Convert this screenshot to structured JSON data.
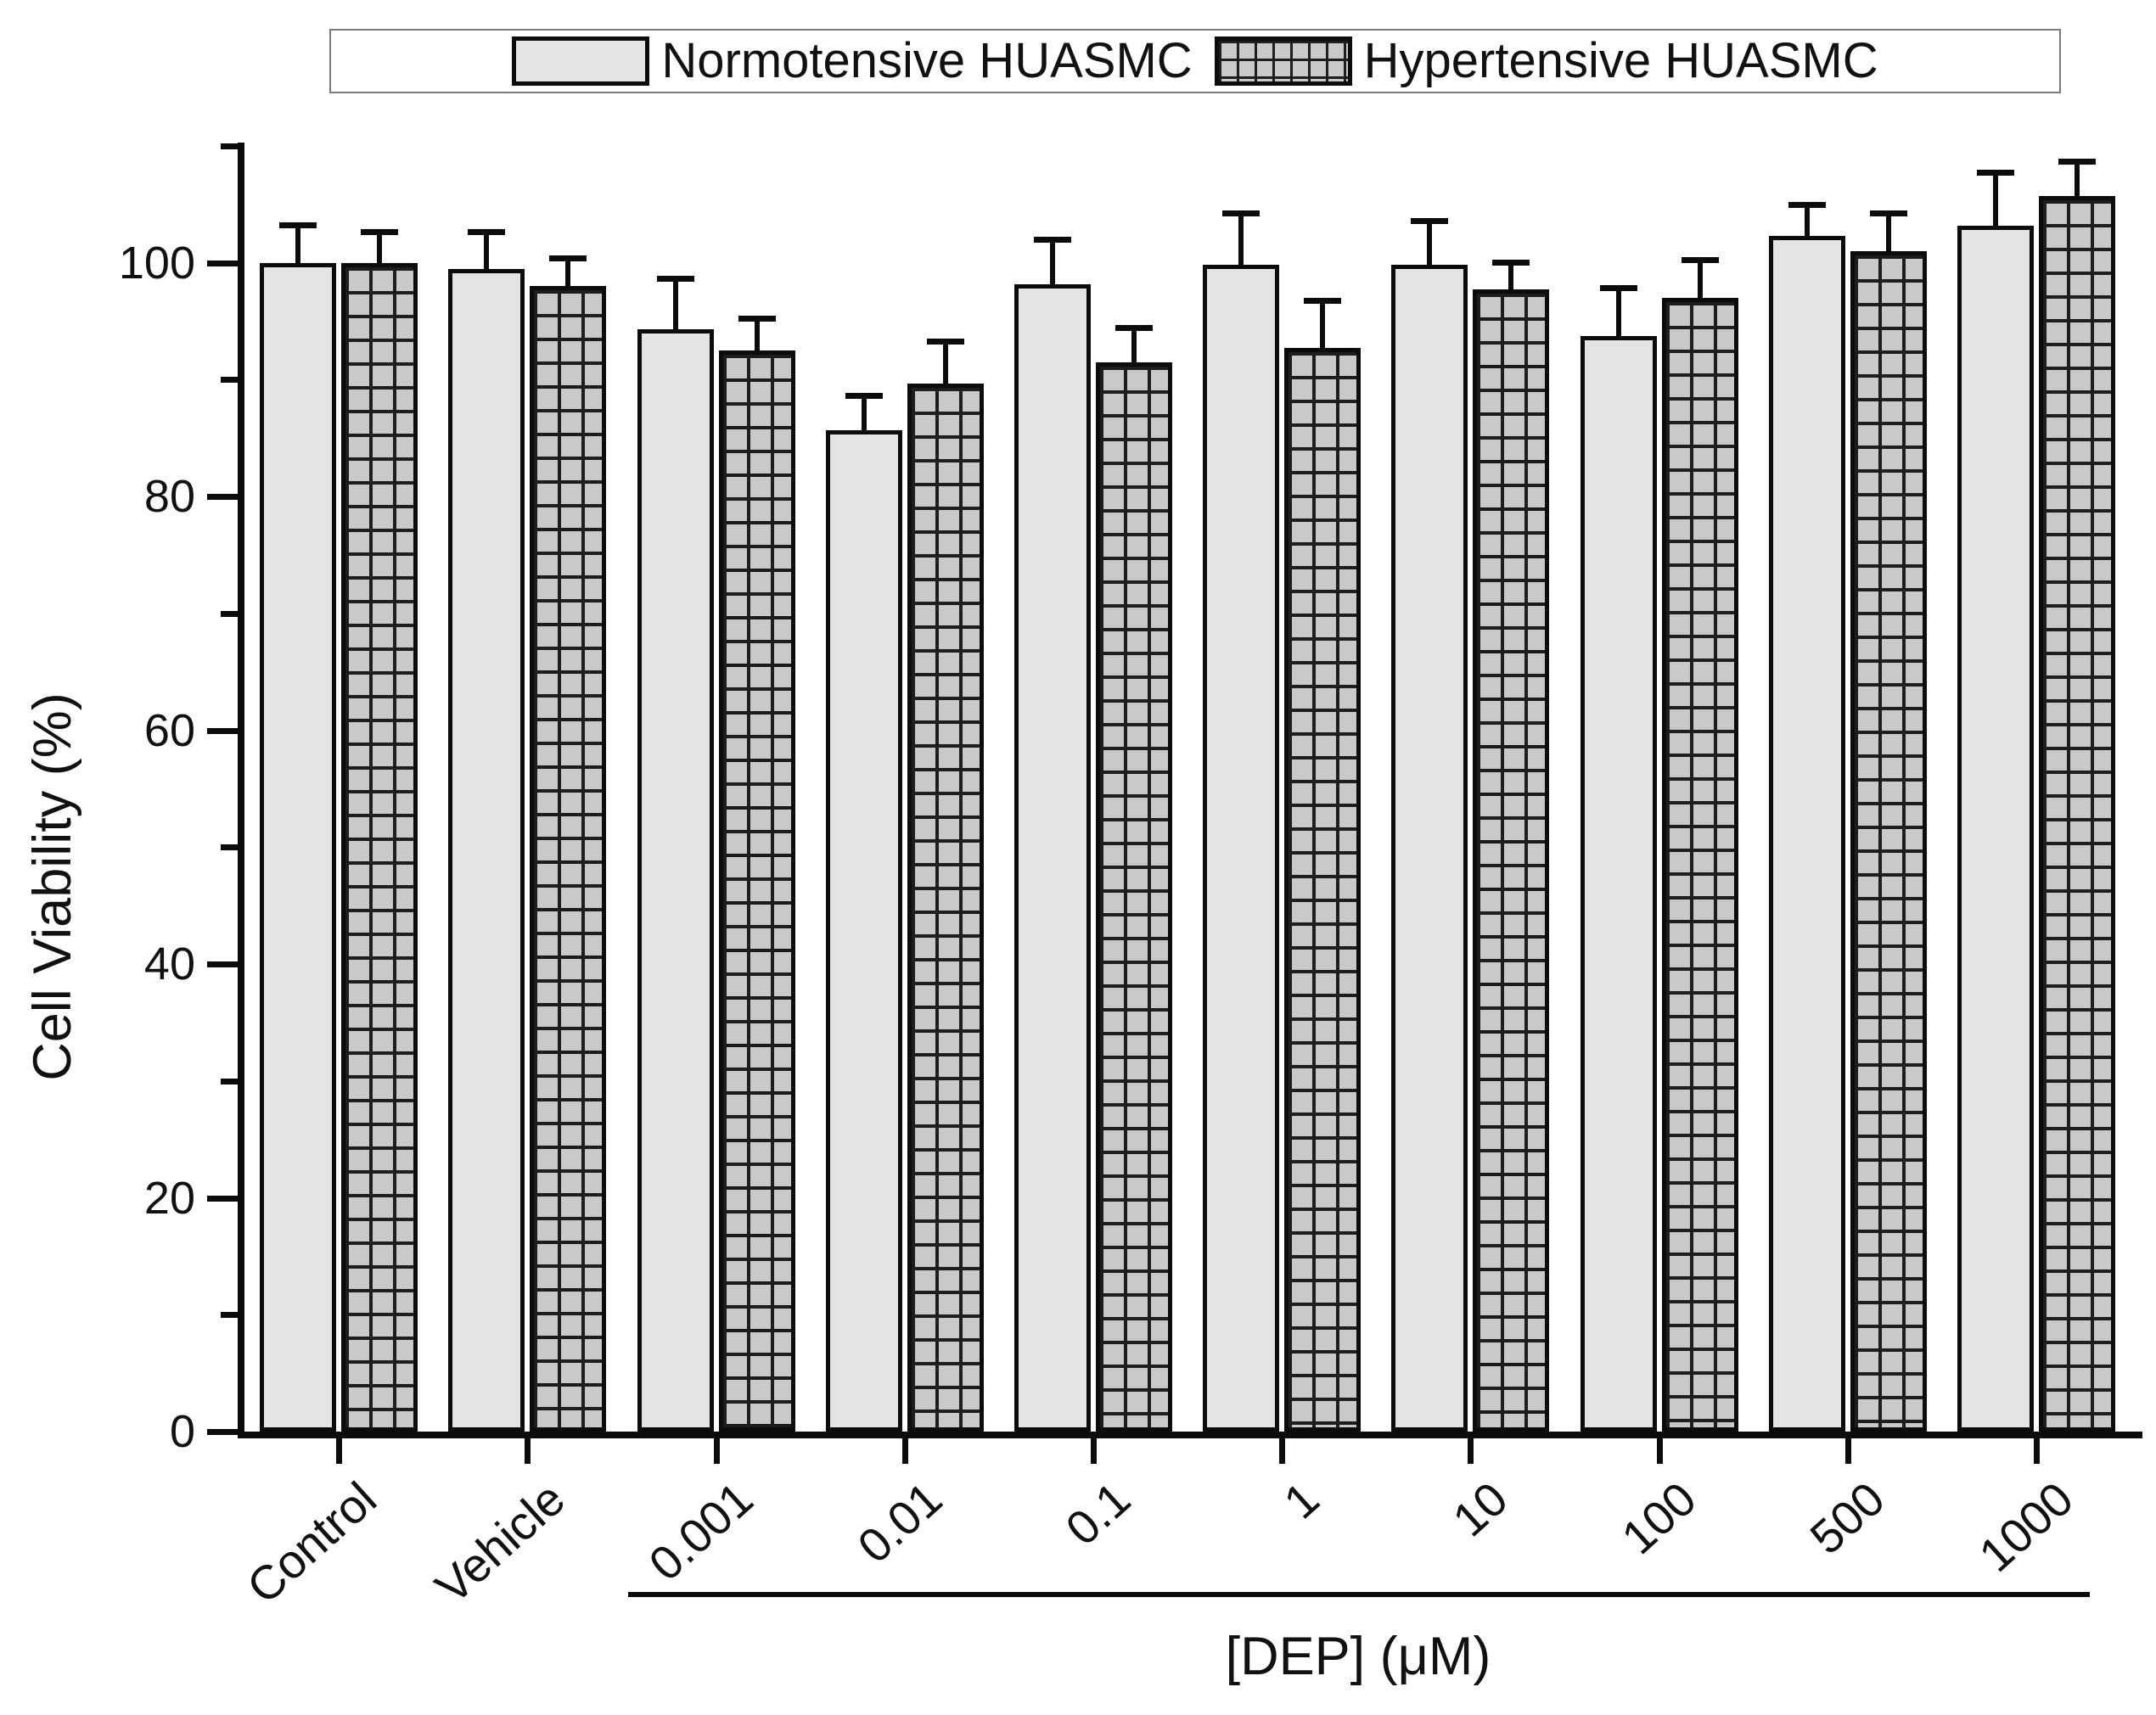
{
  "chart_data": {
    "type": "bar",
    "title": "",
    "xlabel": "[DEP] (μM)",
    "ylabel": "Cell Viability (%)",
    "categories": [
      "Control",
      "Vehicle",
      "0.001",
      "0.01",
      "0.1",
      "1",
      "10",
      "100",
      "500",
      "1000"
    ],
    "ylim": [
      0,
      110
    ],
    "yticks_major": [
      0,
      20,
      40,
      60,
      80,
      100
    ],
    "yticks_minor": [
      10,
      30,
      50,
      70,
      90,
      110
    ],
    "grid": false,
    "legend_position": "top",
    "error_bars": "upper",
    "x_group_line": {
      "from": "0.001",
      "to": "1000",
      "label": "[DEP] (μM)"
    },
    "series": [
      {
        "name": "Normotensive HUASMC",
        "pattern": "solid",
        "fill": "#e4e4e4",
        "border": "#0c0c0c",
        "values": [
          100.0,
          99.5,
          94.3,
          85.7,
          98.2,
          99.8,
          99.8,
          93.7,
          102.3,
          103.2
        ],
        "errors": [
          3.5,
          3.4,
          4.6,
          3.2,
          4.0,
          4.7,
          4.0,
          4.4,
          2.9,
          4.8
        ]
      },
      {
        "name": "Hypertensive HUASMC",
        "pattern": "grid",
        "fill": "#c9c9c9",
        "pattern_color": "#1e1e1e",
        "border": "#0c0c0c",
        "values": [
          100.0,
          98.0,
          92.5,
          89.7,
          91.5,
          92.7,
          97.7,
          97.0,
          101.0,
          105.7
        ],
        "errors": [
          2.9,
          2.6,
          3.0,
          3.8,
          3.2,
          4.3,
          2.6,
          3.5,
          3.5,
          3.2
        ]
      }
    ]
  }
}
